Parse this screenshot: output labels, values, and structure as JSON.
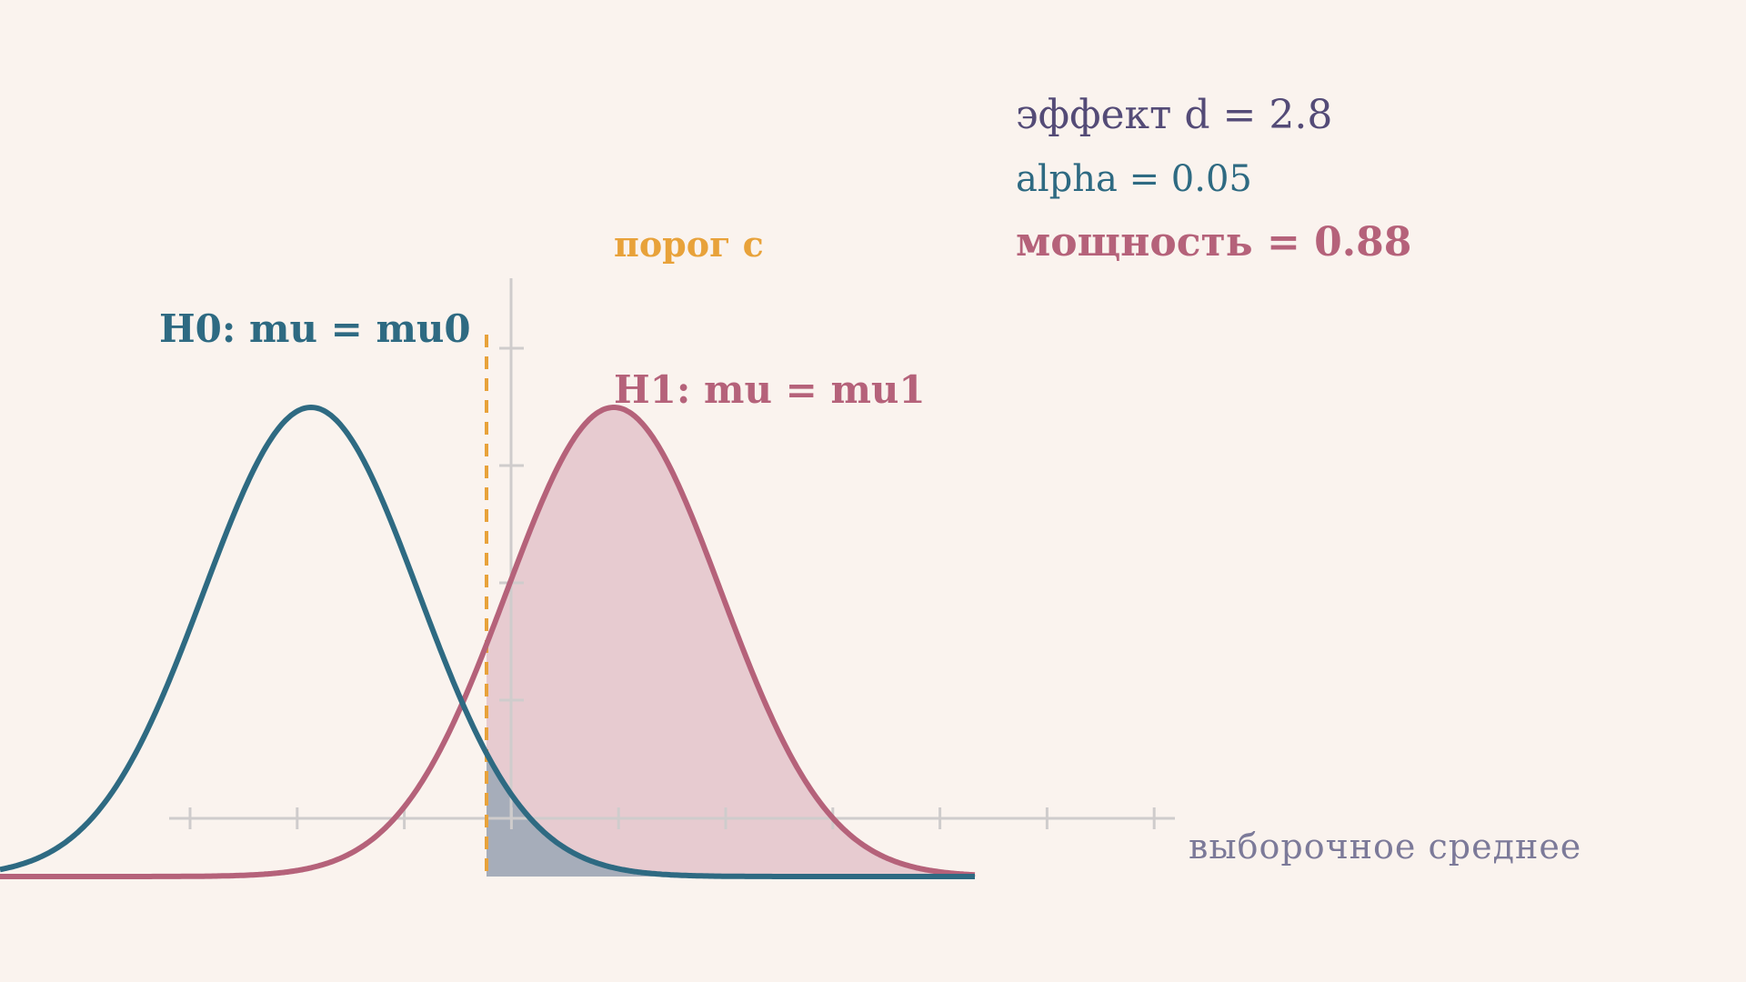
{
  "annotations": {
    "effect": "эффект d = 2.8",
    "alpha": "alpha = 0.05",
    "power": "мощность = 0.88",
    "threshold": "порог c",
    "h0": "H0: mu = mu0",
    "h1": "H1: mu = mu1",
    "x_axis": "выборочное среднее"
  }
}
